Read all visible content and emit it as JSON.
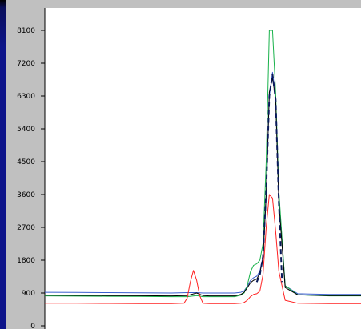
{
  "colors": {
    "frame": "#0d148a",
    "panel": "#c0c0c0",
    "plot_bg": "#ffffff",
    "blue": "#3a5fcf",
    "green": "#19b24b",
    "red": "#ff2020",
    "black": "#000000",
    "dashed": "#0a1a5a"
  },
  "chart_data": {
    "type": "line",
    "ylim": [
      0,
      8100
    ],
    "xlim": [
      0,
      100
    ],
    "grid": false,
    "legend": "none",
    "y_ticks": [
      0,
      900,
      1800,
      2700,
      3600,
      4500,
      5400,
      6300,
      7200,
      8100
    ],
    "y_tick_labels": [
      "0",
      "900",
      "1800",
      "2700",
      "3600",
      "4500",
      "5400",
      "6300",
      "7200",
      "8100"
    ],
    "series": [
      {
        "color": "blue",
        "x": [
          0,
          10,
          20,
          30,
          40,
          45,
          48,
          50,
          52,
          55,
          60,
          62,
          63,
          64,
          65,
          66,
          67,
          68,
          69,
          70,
          71,
          72,
          73,
          74,
          76,
          80,
          90,
          100
        ],
        "y": [
          920,
          915,
          910,
          905,
          900,
          910,
          910,
          900,
          900,
          900,
          900,
          920,
          960,
          1080,
          1240,
          1320,
          1360,
          1500,
          1900,
          3600,
          6300,
          6950,
          6300,
          3600,
          1100,
          880,
          860,
          860
        ]
      },
      {
        "color": "green",
        "x": [
          0,
          10,
          20,
          30,
          40,
          45,
          48,
          50,
          52,
          55,
          60,
          62,
          63,
          64,
          65,
          66,
          67,
          68,
          69,
          70,
          71,
          72,
          73,
          74,
          76,
          80,
          90,
          100
        ],
        "y": [
          820,
          815,
          810,
          805,
          800,
          800,
          830,
          800,
          800,
          800,
          800,
          840,
          900,
          1100,
          1480,
          1660,
          1700,
          1800,
          2250,
          4500,
          8100,
          8100,
          6400,
          3700,
          1100,
          850,
          820,
          820
        ]
      },
      {
        "color": "black",
        "x": [
          0,
          10,
          20,
          30,
          40,
          45,
          48,
          50,
          52,
          55,
          60,
          62,
          63,
          64,
          65,
          66,
          67,
          68,
          69,
          70,
          71,
          72,
          73,
          74,
          76,
          80,
          90,
          100
        ],
        "y": [
          840,
          835,
          830,
          825,
          820,
          830,
          900,
          830,
          820,
          820,
          820,
          860,
          920,
          1040,
          1180,
          1250,
          1280,
          1450,
          1850,
          3600,
          6400,
          6800,
          6200,
          3400,
          1050,
          850,
          830,
          830
        ]
      },
      {
        "color": "red",
        "x": [
          0,
          10,
          20,
          30,
          40,
          44,
          45,
          46,
          47,
          48,
          49,
          50,
          52,
          55,
          60,
          62,
          63,
          64,
          65,
          66,
          67,
          68,
          69,
          70,
          71,
          72,
          73,
          74,
          76,
          80,
          90,
          100
        ],
        "y": [
          620,
          620,
          615,
          610,
          610,
          620,
          760,
          1200,
          1520,
          1250,
          820,
          620,
          610,
          610,
          610,
          620,
          640,
          700,
          800,
          860,
          880,
          950,
          1400,
          2700,
          3600,
          3500,
          2600,
          1500,
          700,
          620,
          610,
          610
        ]
      },
      {
        "color": "dashed",
        "style": "dashed",
        "x": [
          67,
          68,
          69,
          70,
          71,
          72,
          73,
          74,
          75
        ],
        "y": [
          1200,
          1400,
          1900,
          3700,
          6300,
          6900,
          6200,
          3400,
          1200
        ]
      }
    ]
  }
}
